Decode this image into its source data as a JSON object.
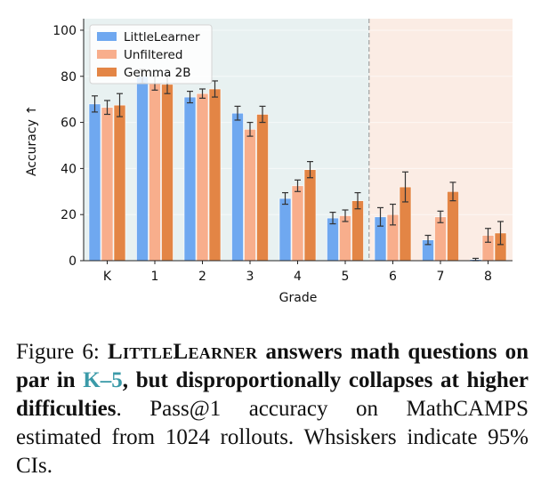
{
  "chart_data": {
    "type": "bar",
    "xlabel": "Grade",
    "ylabel": "Accuracy ↑",
    "ylim": [
      0,
      105
    ],
    "yticks": [
      0,
      20,
      40,
      60,
      80,
      100
    ],
    "categories": [
      "K",
      "1",
      "2",
      "3",
      "4",
      "5",
      "6",
      "7",
      "8"
    ],
    "series": [
      {
        "name": "LittleLearner",
        "color": "#6fa8f0",
        "values": [
          68,
          80,
          71,
          64,
          27,
          18.5,
          19,
          9,
          0.5
        ],
        "err": [
          3.5,
          3,
          2.5,
          3,
          2.5,
          2.5,
          4,
          2,
          0.5
        ]
      },
      {
        "name": "Unfiltered",
        "color": "#f8ae8c",
        "values": [
          66.5,
          77,
          72.5,
          57,
          32.5,
          19.5,
          20,
          19,
          11
        ],
        "err": [
          3,
          3,
          2,
          3,
          2.5,
          2.5,
          4.5,
          2.5,
          3
        ]
      },
      {
        "name": "Gemma 2B",
        "color": "#e38545",
        "values": [
          67.5,
          76.5,
          74.5,
          63.5,
          39.5,
          26,
          32,
          30,
          12
        ],
        "err": [
          5,
          4,
          3.5,
          3.5,
          3.5,
          3.5,
          6.5,
          4,
          5
        ]
      }
    ],
    "legend_position": "top-left",
    "background_regions": [
      {
        "from": "K",
        "to": "5",
        "color": "#e8f1f1"
      },
      {
        "from": "6",
        "to": "8",
        "color": "#fbece4"
      }
    ],
    "divider": "between 5 and 6 (dashed)",
    "grid": false
  },
  "caption": {
    "prefix": "Figure 6: ",
    "model_name": "LittleLearner",
    "bold_part1": " answers math questions on par in ",
    "link_text": "K–5",
    "bold_part2": ", but disproportionally collapses at higher difficulties",
    "rest": ". Pass@1 accuracy on MathCAMPS estimated from 1024 rollouts. Whsiskers indicate 95% CIs."
  }
}
